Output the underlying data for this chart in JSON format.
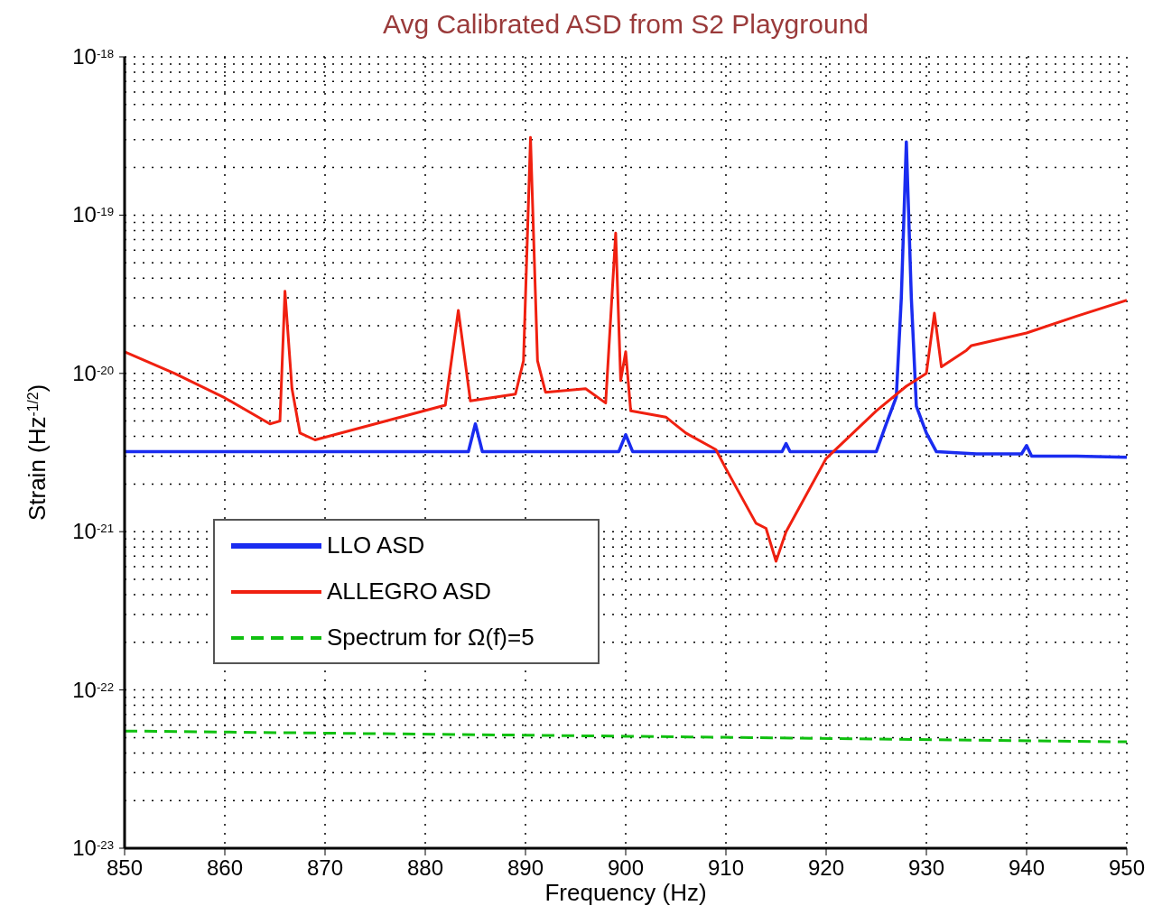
{
  "chart_data": {
    "type": "line",
    "title": "Avg Calibrated ASD from S2 Playground",
    "xlabel": "Frequency (Hz)",
    "ylabel": "Strain (Hz$^{-1/2}$)",
    "log": "y",
    "grid": true,
    "legend": "bottom left",
    "xlim": [
      850,
      950
    ],
    "xticks": [
      850,
      860,
      870,
      880,
      890,
      900,
      910,
      920,
      930,
      940,
      950
    ],
    "ylim": [
      1e-23,
      1e-18
    ],
    "yticks": [
      {
        "value": 1e-23,
        "label": "10$^{-23}$"
      },
      {
        "value": 1e-22,
        "label": "10$^{-22}$"
      },
      {
        "value": 1e-21,
        "label": "10$^{-21}$"
      },
      {
        "value": 1e-20,
        "label": "10$^{-20}$"
      },
      {
        "value": 1e-19,
        "label": "10$^{-19}$"
      },
      {
        "value": 1e-18,
        "label": "10$^{-18}$"
      }
    ],
    "series": [
      {
        "name": "LLO ASD",
        "color": "#1a2cf0",
        "line_style": "solid",
        "x": [
          850,
          860,
          870,
          880,
          884.3,
          885,
          885.7,
          890,
          899.3,
          900,
          900.7,
          910,
          915.6,
          916,
          916.4,
          920,
          925,
          926,
          927,
          927.5,
          928,
          928.5,
          929,
          930,
          931,
          935,
          939.5,
          940,
          940.5,
          945,
          950
        ],
        "values": [
          3.2e-21,
          3.2e-21,
          3.2e-21,
          3.2e-21,
          3.2e-21,
          4.8e-21,
          3.2e-21,
          3.2e-21,
          3.2e-21,
          4.1e-21,
          3.2e-21,
          3.2e-21,
          3.2e-21,
          3.6e-21,
          3.2e-21,
          3.2e-21,
          3.2e-21,
          4.8e-21,
          7.1e-21,
          3e-20,
          2.9e-19,
          3e-20,
          6.2e-21,
          4.2e-21,
          3.2e-21,
          3.1e-21,
          3.1e-21,
          3.5e-21,
          3e-21,
          3e-21,
          2.95e-21
        ]
      },
      {
        "name": "ALLEGRO ASD",
        "color": "#f02010",
        "line_style": "solid",
        "x": [
          850,
          855,
          860,
          864.5,
          865.5,
          866,
          866.7,
          867.5,
          869,
          875,
          882,
          883.3,
          884.5,
          889,
          889.8,
          890.5,
          891.2,
          892,
          896,
          898,
          899,
          899.5,
          900,
          900.5,
          904,
          906,
          909,
          910,
          913,
          914,
          915,
          916,
          920,
          925,
          928,
          930,
          930.8,
          931.5,
          934,
          934.5,
          940,
          945,
          950
        ],
        "values": [
          1.37e-20,
          1e-20,
          7e-21,
          4.8e-21,
          5e-21,
          3.3e-20,
          8e-21,
          4.2e-21,
          3.8e-21,
          4.8e-21,
          6.3e-21,
          2.5e-20,
          6.7e-21,
          7.4e-21,
          1.2e-20,
          3.1e-19,
          1.2e-20,
          7.6e-21,
          8e-21,
          6.5e-21,
          7.7e-20,
          9e-21,
          1.37e-20,
          5.8e-21,
          5.3e-21,
          4.2e-21,
          3.3e-21,
          2.5e-21,
          1.13e-21,
          1.05e-21,
          6.5e-22,
          1e-21,
          2.9e-21,
          5.8e-21,
          8.3e-21,
          1e-20,
          2.4e-20,
          1.1e-20,
          1.4e-20,
          1.5e-20,
          1.8e-20,
          2.3e-20,
          2.9e-20
        ]
      },
      {
        "name": "Spectrum for Ω(f)=5",
        "color": "#10c010",
        "line_style": "dashed",
        "x": [
          850,
          900,
          950
        ],
        "values": [
          5.5e-23,
          5.1e-23,
          4.7e-23
        ]
      }
    ]
  }
}
